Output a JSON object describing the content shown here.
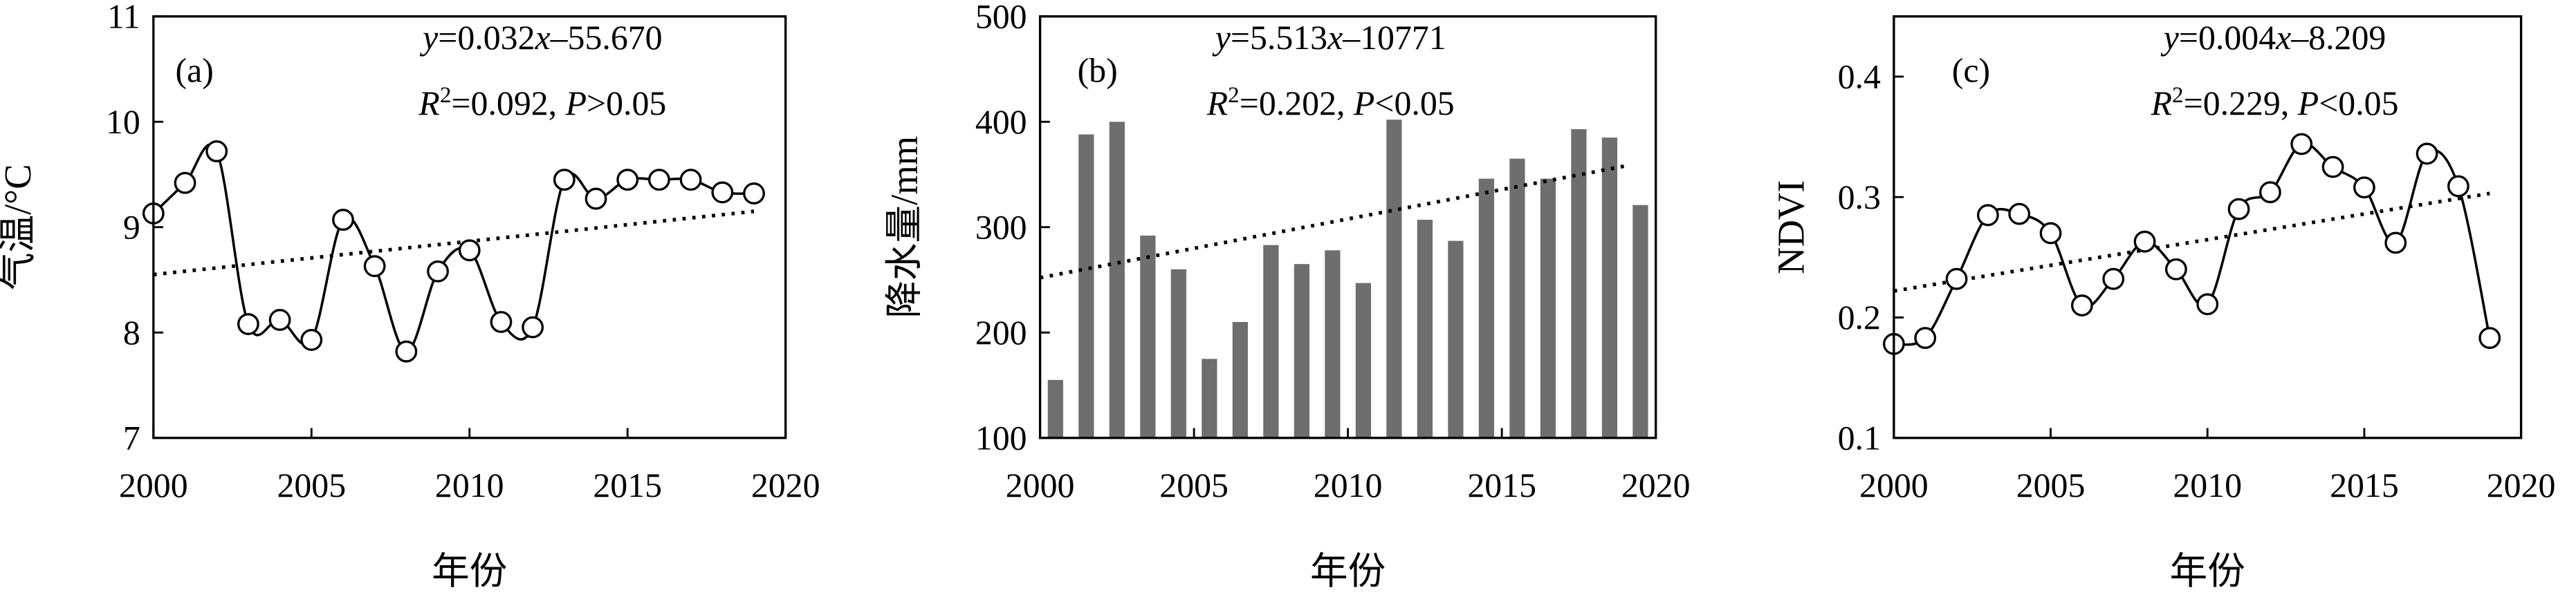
{
  "chart_data": [
    {
      "type": "line",
      "panel_label": "(a)",
      "equation": [
        {
          "text": "y",
          "italic": true
        },
        {
          "text": "=0.032"
        },
        {
          "text": "x",
          "italic": true
        },
        {
          "text": "–55.670"
        }
      ],
      "statistics": [
        {
          "text": "R",
          "italic": true
        },
        {
          "text": "2",
          "superscript": true
        },
        {
          "text": "=0.092, "
        },
        {
          "text": "P",
          "italic": true
        },
        {
          "text": ">0.05"
        }
      ],
      "x_label": "年份",
      "y_label": "气温/°C",
      "color": "#000000",
      "marker": "circle",
      "x": [
        2000,
        2001,
        2002,
        2003,
        2004,
        2005,
        2006,
        2007,
        2008,
        2009,
        2010,
        2011,
        2012,
        2013,
        2014,
        2015,
        2016,
        2017,
        2018,
        2019
      ],
      "values": [
        9.13,
        9.42,
        9.72,
        8.08,
        8.12,
        7.93,
        9.07,
        8.63,
        7.82,
        8.58,
        8.78,
        8.1,
        8.05,
        9.45,
        9.27,
        9.45,
        9.45,
        9.45,
        9.33,
        9.32
      ],
      "trendline": {
        "x": [
          2000,
          2019
        ],
        "values": [
          8.55,
          9.15
        ]
      },
      "xlim": [
        2000,
        2020
      ],
      "xticks": [
        2000,
        2005,
        2010,
        2015,
        2020
      ],
      "ylim": [
        7,
        11
      ],
      "yticks": [
        7,
        8,
        9,
        10,
        11
      ]
    },
    {
      "type": "bar",
      "panel_label": "(b)",
      "equation": [
        {
          "text": "y",
          "italic": true
        },
        {
          "text": "=5.513"
        },
        {
          "text": "x",
          "italic": true
        },
        {
          "text": "–10771"
        }
      ],
      "statistics": [
        {
          "text": "R",
          "italic": true
        },
        {
          "text": "2",
          "superscript": true
        },
        {
          "text": "=0.202, "
        },
        {
          "text": "P",
          "italic": true
        },
        {
          "text": "<0.05"
        }
      ],
      "x_label": "年份",
      "y_label": "降水量/mm",
      "color": "#6e6e6e",
      "x": [
        2000,
        2001,
        2002,
        2003,
        2004,
        2005,
        2006,
        2007,
        2008,
        2009,
        2010,
        2011,
        2012,
        2013,
        2014,
        2015,
        2016,
        2017,
        2018,
        2019
      ],
      "values": [
        155,
        388,
        400,
        292,
        260,
        175,
        210,
        283,
        265,
        278,
        247,
        402,
        307,
        287,
        346,
        365,
        346,
        393,
        385,
        321
      ],
      "trendline": {
        "x": [
          2000,
          2019
        ],
        "values": [
          252,
          358
        ]
      },
      "xlim": [
        2000,
        2020
      ],
      "xticks": [
        2000,
        2005,
        2010,
        2015,
        2020
      ],
      "ylim": [
        100,
        500
      ],
      "yticks": [
        100,
        200,
        300,
        400,
        500
      ]
    },
    {
      "type": "line",
      "panel_label": "(c)",
      "equation": [
        {
          "text": "y",
          "italic": true
        },
        {
          "text": "=0.004"
        },
        {
          "text": "x",
          "italic": true
        },
        {
          "text": "–8.209"
        }
      ],
      "statistics": [
        {
          "text": "R",
          "italic": true
        },
        {
          "text": "2",
          "superscript": true
        },
        {
          "text": "=0.229, "
        },
        {
          "text": "P",
          "italic": true
        },
        {
          "text": "<0.05"
        }
      ],
      "x_label": "年份",
      "y_label": "NDVI",
      "color": "#000000",
      "marker": "circle",
      "x": [
        2000,
        2001,
        2002,
        2003,
        2004,
        2005,
        2006,
        2007,
        2008,
        2009,
        2010,
        2011,
        2012,
        2013,
        2014,
        2015,
        2016,
        2017,
        2018,
        2019
      ],
      "values": [
        0.178,
        0.183,
        0.232,
        0.285,
        0.286,
        0.27,
        0.21,
        0.232,
        0.263,
        0.24,
        0.211,
        0.29,
        0.304,
        0.344,
        0.325,
        0.308,
        0.262,
        0.336,
        0.309,
        0.183
      ],
      "trendline": {
        "x": [
          2000,
          2019
        ],
        "values": [
          0.222,
          0.303
        ]
      },
      "xlim": [
        2000,
        2020
      ],
      "xticks": [
        2000,
        2005,
        2010,
        2015,
        2020
      ],
      "ylim": [
        0.1,
        0.45
      ],
      "yticks": [
        0.1,
        0.2,
        0.3,
        0.4
      ]
    }
  ]
}
